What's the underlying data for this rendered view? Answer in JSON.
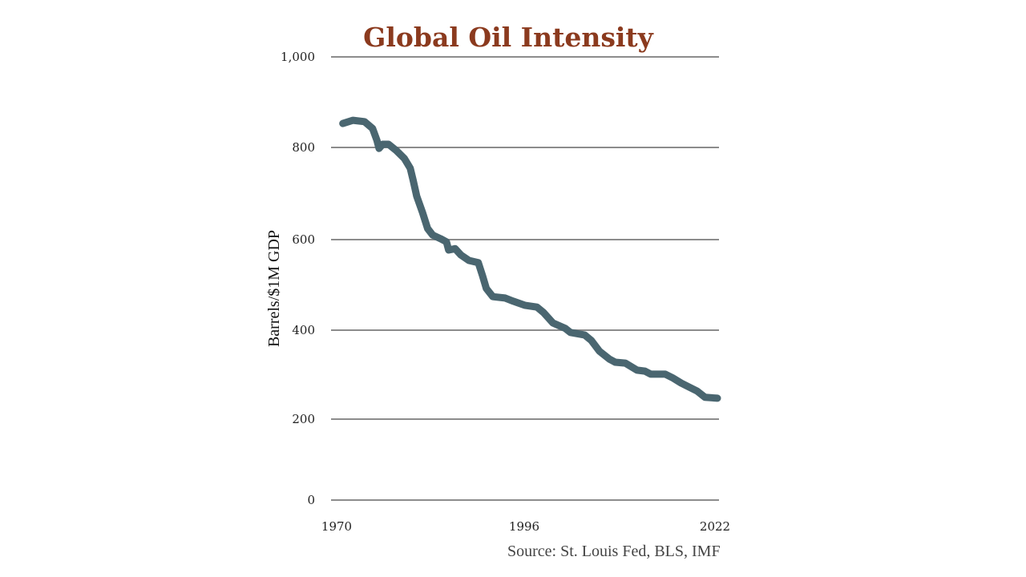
{
  "chart_data": {
    "type": "line",
    "title": "Global Oil Intensity",
    "xlabel": "",
    "ylabel": "Barrels/$1M GDP",
    "source": "Source: St. Louis Fed, BLS, IMF",
    "xlim": [
      1970,
      2022
    ],
    "ylim": [
      0,
      1000
    ],
    "x_ticks": [
      1970,
      1996,
      2022
    ],
    "x_tick_labels": [
      "1970",
      "1996",
      "2022"
    ],
    "y_ticks": [
      0,
      200,
      400,
      600,
      800,
      1000
    ],
    "y_tick_labels": [
      "0",
      "200",
      "400",
      "600",
      "800",
      "1,000"
    ],
    "grid": true,
    "legend": "none",
    "colors": {
      "title": "#8b3a1e",
      "line": "#4a6670",
      "grid": "#8c8c8c"
    },
    "series": [
      {
        "name": "Oil intensity",
        "x": [
          1970.3,
          1971.7,
          1973.3,
          1974.4,
          1975.0,
          1975.3,
          1975.8,
          1976.6,
          1977.7,
          1978.8,
          1979.6,
          1980.0,
          1980.5,
          1981.3,
          1982.0,
          1982.7,
          1983.8,
          1984.6,
          1984.9,
          1985.8,
          1986.6,
          1987.7,
          1989.0,
          1989.6,
          1990.1,
          1991.0,
          1992.7,
          1993.8,
          1995.4,
          1997.1,
          1998.0,
          1999.3,
          2001.0,
          2001.7,
          2003.7,
          2004.6,
          2005.7,
          2007.1,
          2007.9,
          2009.3,
          2010.9,
          2012.0,
          2012.8,
          2014.8,
          2015.9,
          2017.0,
          2018.1,
          2019.2,
          2020.3,
          2022.0
        ],
        "values": [
          853,
          860,
          857,
          842,
          816,
          798,
          807,
          807,
          793,
          776,
          755,
          729,
          694,
          659,
          624,
          610,
          602,
          595,
          577,
          580,
          566,
          554,
          549,
          519,
          492,
          474,
          471,
          464,
          455,
          451,
          439,
          416,
          404,
          395,
          389,
          377,
          353,
          335,
          328,
          326,
          310,
          308,
          301,
          301,
          292,
          281,
          272,
          263,
          249,
          247
        ]
      }
    ]
  }
}
